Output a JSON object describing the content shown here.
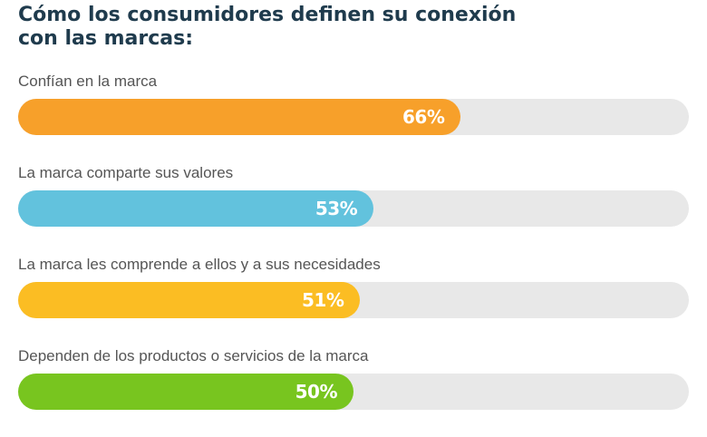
{
  "chart_data": {
    "type": "bar",
    "orientation": "horizontal",
    "title": "Cómo los consumidores definen su conexión con las marcas:",
    "categories": [
      "Confían en la marca",
      "La marca comparte sus valores",
      "La marca les comprende a ellos y a sus necesidades",
      "Dependen de los productos o servicios de la marca"
    ],
    "values": [
      66,
      53,
      51,
      50
    ],
    "value_labels": [
      "66%",
      "53%",
      "51%",
      "50%"
    ],
    "colors": [
      "#f7a02a",
      "#62c2dd",
      "#fbbd23",
      "#78c51f"
    ],
    "track_color": "#e8e8e8",
    "xlim": [
      0,
      100
    ],
    "grid": false,
    "legend": "none"
  }
}
